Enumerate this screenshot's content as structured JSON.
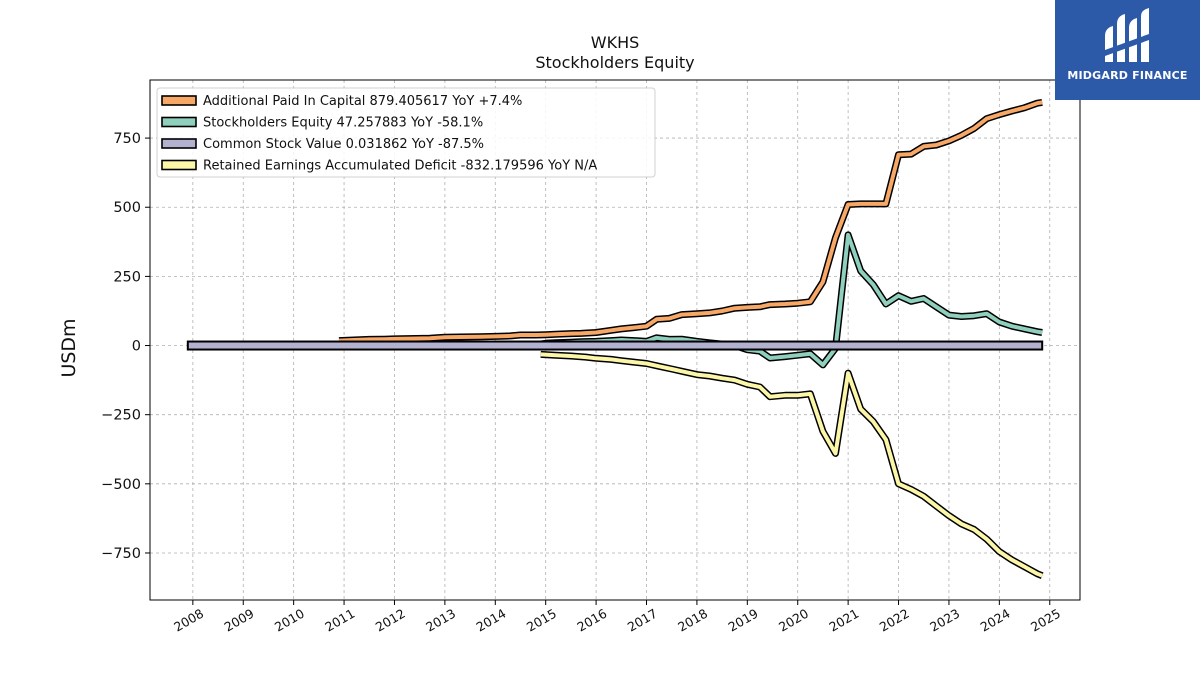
{
  "header": {
    "ticker": "WKHS",
    "subtitle": "Stockholders  Equity"
  },
  "brand": {
    "name": "MIDGARD FINANCE",
    "color": "#2c5aa8",
    "icon": "midgard-logo-icon"
  },
  "chart_data": {
    "type": "line",
    "title": "WKHS",
    "subtitle": "Stockholders  Equity",
    "ylabel": "USDm",
    "xlabel": "",
    "xlim": [
      2007.15,
      2025.6
    ],
    "ylim": [
      -920,
      960
    ],
    "yticks": [
      -750,
      -500,
      -250,
      0,
      250,
      500,
      750
    ],
    "ytick_labels": [
      "−750",
      "−500",
      "−250",
      "0",
      "250",
      "500",
      "750"
    ],
    "xticks": [
      2008,
      2009,
      2010,
      2011,
      2012,
      2013,
      2014,
      2015,
      2016,
      2017,
      2018,
      2019,
      2020,
      2021,
      2022,
      2023,
      2024,
      2025
    ],
    "xtick_labels": [
      "2008",
      "2009",
      "2010",
      "2011",
      "2012",
      "2013",
      "2014",
      "2015",
      "2016",
      "2017",
      "2018",
      "2019",
      "2020",
      "2021",
      "2022",
      "2023",
      "2024",
      "2025"
    ],
    "grid": true,
    "legend_position": "top-left",
    "series": [
      {
        "name": "Additional Paid In Capital",
        "legend": "Additional Paid In Capital  879.405617 YoY +7.4%",
        "color": "#f7a867",
        "x": [
          2010.9,
          2011.2,
          2011.5,
          2011.8,
          2012.0,
          2012.3,
          2012.7,
          2013.0,
          2013.3,
          2013.7,
          2014.0,
          2014.3,
          2014.5,
          2014.8,
          2015.0,
          2015.2,
          2015.5,
          2015.7,
          2016.0,
          2016.3,
          2016.5,
          2016.75,
          2017.0,
          2017.2,
          2017.45,
          2017.7,
          2018.0,
          2018.25,
          2018.5,
          2018.75,
          2019.0,
          2019.25,
          2019.45,
          2019.75,
          2020.0,
          2020.25,
          2020.5,
          2020.75,
          2021.0,
          2021.25,
          2021.45,
          2021.75,
          2022.0,
          2022.25,
          2022.5,
          2022.75,
          2023.0,
          2023.25,
          2023.5,
          2023.75,
          2024.0,
          2024.25,
          2024.5,
          2024.75,
          2024.85
        ],
        "y": [
          18,
          20,
          22,
          23,
          24,
          25,
          26,
          30,
          31,
          32,
          33,
          35,
          38,
          38,
          39,
          41,
          43,
          44,
          47,
          55,
          60,
          65,
          70,
          95,
          98,
          112,
          115,
          118,
          125,
          135,
          138,
          140,
          148,
          150,
          153,
          158,
          230,
          390,
          510,
          512,
          512,
          512,
          690,
          692,
          720,
          725,
          740,
          760,
          785,
          820,
          835,
          848,
          860,
          876,
          879
        ]
      },
      {
        "name": "Stockholders Equity",
        "legend": "Stockholders Equity  47.257883 YoY -58.1%",
        "color": "#8fcfbd",
        "x": [
          2010.9,
          2011.2,
          2011.5,
          2011.8,
          2012.0,
          2012.3,
          2012.7,
          2013.0,
          2013.3,
          2013.7,
          2014.0,
          2014.3,
          2014.5,
          2014.8,
          2015.0,
          2015.2,
          2015.5,
          2015.7,
          2016.0,
          2016.3,
          2016.5,
          2016.75,
          2017.0,
          2017.2,
          2017.45,
          2017.7,
          2018.0,
          2018.25,
          2018.5,
          2018.75,
          2019.0,
          2019.25,
          2019.45,
          2019.75,
          2020.0,
          2020.25,
          2020.5,
          2020.75,
          2021.0,
          2021.25,
          2021.5,
          2021.75,
          2022.0,
          2022.25,
          2022.5,
          2022.75,
          2023.0,
          2023.25,
          2023.5,
          2023.75,
          2024.0,
          2024.25,
          2024.5,
          2024.75,
          2024.85
        ],
        "y": [
          5,
          4,
          3,
          2,
          1,
          0,
          -2,
          2,
          3,
          2,
          1,
          3,
          2,
          3,
          8,
          10,
          12,
          14,
          15,
          18,
          20,
          18,
          15,
          28,
          22,
          23,
          15,
          10,
          5,
          0,
          -15,
          -20,
          -45,
          -40,
          -35,
          -30,
          -70,
          -10,
          400,
          270,
          220,
          150,
          180,
          160,
          170,
          140,
          110,
          105,
          108,
          115,
          85,
          70,
          60,
          50,
          47
        ]
      },
      {
        "name": "Common Stock Value",
        "legend": "Common Stock Value  0.031862 YoY -87.5%",
        "color": "#b3b1d0",
        "x": [
          2007.9,
          2024.85
        ],
        "y": [
          0,
          0
        ]
      },
      {
        "name": "Retained Earnings Accumulated Deficit",
        "legend": "Retained Earnings Accumulated Deficit  -832.179596 YoY N/A",
        "color": "#fcf7a8",
        "x": [
          2014.9,
          2015.2,
          2015.5,
          2015.8,
          2016.0,
          2016.3,
          2016.5,
          2016.75,
          2017.0,
          2017.25,
          2017.5,
          2017.75,
          2018.0,
          2018.25,
          2018.5,
          2018.75,
          2019.0,
          2019.25,
          2019.45,
          2019.75,
          2020.0,
          2020.25,
          2020.5,
          2020.75,
          2021.0,
          2021.25,
          2021.5,
          2021.75,
          2022.0,
          2022.25,
          2022.5,
          2022.75,
          2023.0,
          2023.25,
          2023.5,
          2023.75,
          2024.0,
          2024.25,
          2024.5,
          2024.75,
          2024.85
        ],
        "y": [
          -32,
          -35,
          -38,
          -42,
          -46,
          -50,
          -55,
          -60,
          -65,
          -75,
          -85,
          -95,
          -105,
          -110,
          -118,
          -125,
          -140,
          -150,
          -185,
          -180,
          -180,
          -175,
          -310,
          -390,
          -100,
          -230,
          -275,
          -340,
          -500,
          -520,
          -545,
          -580,
          -615,
          -645,
          -665,
          -700,
          -745,
          -775,
          -800,
          -825,
          -832
        ]
      }
    ]
  }
}
